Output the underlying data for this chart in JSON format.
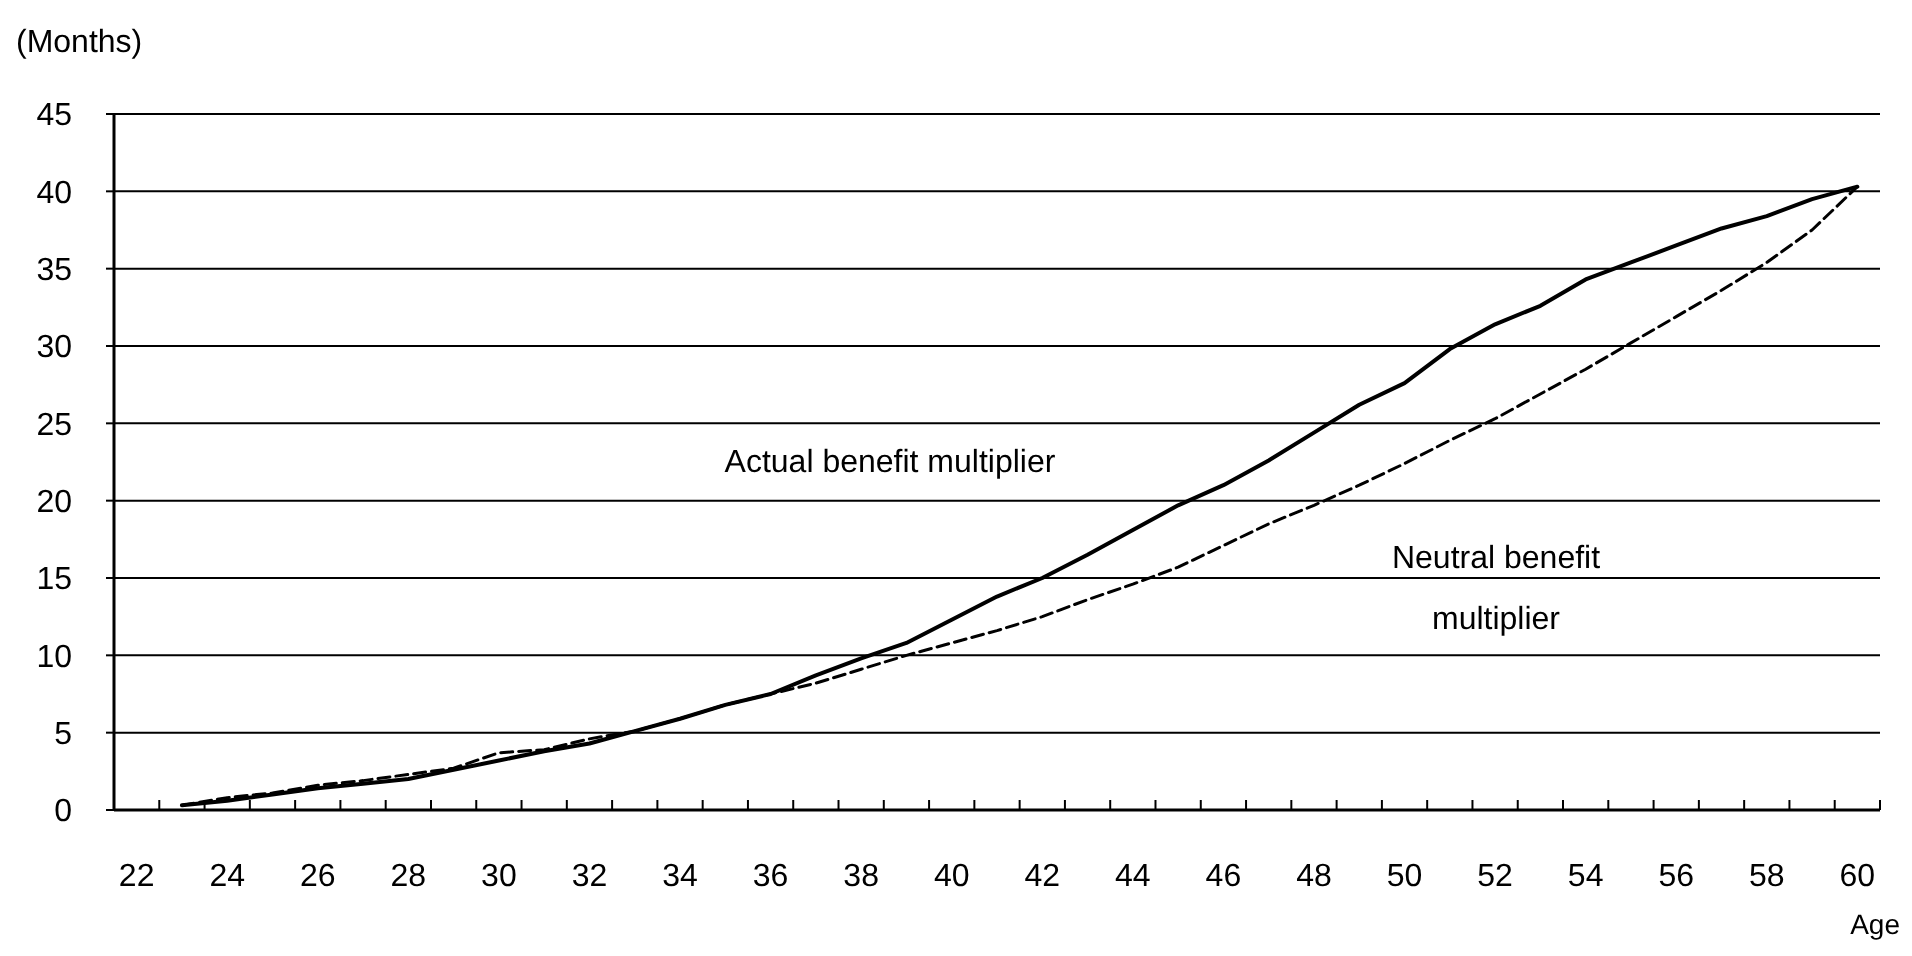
{
  "chart_data": {
    "type": "line",
    "xlabel": "Age",
    "ylabel": "(Months)",
    "categories": [
      "22",
      null,
      "24",
      null,
      "26",
      null,
      "28",
      null,
      "30",
      null,
      "32",
      null,
      "34",
      null,
      "36",
      null,
      "38",
      null,
      "40",
      null,
      "42",
      null,
      "44",
      null,
      "46",
      null,
      "48",
      null,
      "50",
      null,
      "52",
      null,
      "54",
      null,
      "56",
      null,
      "58",
      null,
      "60"
    ],
    "ylim": [
      0,
      45
    ],
    "yticks": [
      0,
      5,
      10,
      15,
      20,
      25,
      30,
      35,
      40,
      45
    ],
    "grid": "y",
    "marker": "none",
    "series": [
      {
        "name": "Actual benefit multiplier",
        "color": "#000000",
        "line_style": "solid",
        "values": [
          null,
          0.3,
          0.6,
          1.0,
          1.4,
          1.7,
          2.0,
          2.6,
          3.2,
          3.8,
          4.3,
          5.1,
          5.9,
          6.8,
          7.5,
          8.7,
          9.8,
          10.8,
          12.3,
          13.8,
          15.0,
          16.5,
          18.1,
          19.7,
          21.0,
          22.6,
          24.4,
          26.2,
          27.6,
          29.8,
          31.4,
          32.6,
          34.3,
          35.4,
          36.5,
          37.6,
          38.4,
          39.5,
          40.3
        ]
      },
      {
        "name": "Neutral benefit multiplier",
        "color": "#000000",
        "line_style": "dashed",
        "values": [
          null,
          0.3,
          0.8,
          1.1,
          1.6,
          1.9,
          2.3,
          2.7,
          3.7,
          3.9,
          4.6,
          5.1,
          5.9,
          6.8,
          7.5,
          8.2,
          9.1,
          10.0,
          10.8,
          11.6,
          12.5,
          13.6,
          14.6,
          15.7,
          17.1,
          18.5,
          19.7,
          21.0,
          22.4,
          23.9,
          25.3,
          26.9,
          28.5,
          30.2,
          31.9,
          33.6,
          35.4,
          37.5,
          40.3
        ]
      }
    ]
  }
}
